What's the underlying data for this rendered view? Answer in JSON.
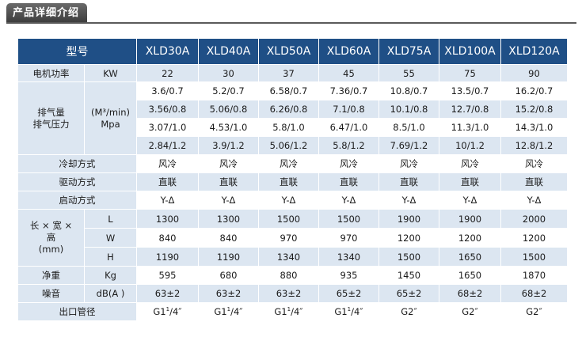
{
  "header": {
    "title": "产品详细介绍"
  },
  "table": {
    "model_header": "型号",
    "models": [
      "XLD30A",
      "XLD40A",
      "XLD50A",
      "XLD60A",
      "XLD75A",
      "XLD100A",
      "XLD120A"
    ],
    "power": {
      "label": "电机功率",
      "unit": "KW",
      "values": [
        "22",
        "30",
        "37",
        "45",
        "55",
        "75",
        "90"
      ]
    },
    "air": {
      "label_line1": "排气量",
      "label_line2": "排气压力",
      "unit_line1": "(M³/min)",
      "unit_line2": "Mpa",
      "rows": [
        [
          "3.6/0.7",
          "5.2/0.7",
          "6.58/0.7",
          "7.36/0.7",
          "10.8/0.7",
          "13.5/0.7",
          "16.2/0.7"
        ],
        [
          "3.56/0.8",
          "5.06/0.8",
          "6.26/0.8",
          "7.1/0.8",
          "10.1/0.8",
          "12.7/0.8",
          "15.2/0.8"
        ],
        [
          "3.07/1.0",
          "4.53/1.0",
          "5.8/1.0",
          "6.47/1.0",
          "8.5/1.0",
          "11.3/1.0",
          "14.3/1.0"
        ],
        [
          "2.84/1.2",
          "3.9/1.2",
          "5.06/1.2",
          "5.8/1.2",
          "7.69/1.2",
          "10/1.2",
          "12.8/1.2"
        ]
      ]
    },
    "cooling": {
      "label": "冷却方式",
      "values": [
        "风冷",
        "风冷",
        "风冷",
        "风冷",
        "风冷",
        "风冷",
        "风冷"
      ]
    },
    "drive": {
      "label": "驱动方式",
      "values": [
        "直联",
        "直联",
        "直联",
        "直联",
        "直联",
        "直联",
        "直联"
      ]
    },
    "start": {
      "label": "启动方式",
      "values": [
        "Y-Δ",
        "Y-Δ",
        "Y-Δ",
        "Y-Δ",
        "Y-Δ",
        "Y-Δ",
        "Y-Δ"
      ]
    },
    "dims": {
      "label_line1": "长 × 宽 ×",
      "label_line2": "高",
      "label_line3": "(mm)",
      "rows": [
        {
          "unit": "L",
          "values": [
            "1300",
            "1300",
            "1500",
            "1500",
            "1900",
            "1900",
            "2000"
          ]
        },
        {
          "unit": "W",
          "values": [
            "840",
            "840",
            "970",
            "970",
            "1200",
            "1200",
            "1200"
          ]
        },
        {
          "unit": "H",
          "values": [
            "1190",
            "1190",
            "1340",
            "1340",
            "1500",
            "1650",
            "1500"
          ]
        }
      ]
    },
    "weight": {
      "label": "净重",
      "unit": "Kg",
      "values": [
        "595",
        "680",
        "880",
        "935",
        "1450",
        "1650",
        "1870"
      ]
    },
    "noise": {
      "label": "噪音",
      "unit": "dB(A )",
      "values": [
        "63±2",
        "63±2",
        "63±2",
        "65±2",
        "65±2",
        "68±2",
        "68±2"
      ]
    },
    "outlet": {
      "label": "出口管径",
      "values": [
        {
          "base": "G1",
          "sup": "1",
          "tail": "/4″"
        },
        {
          "base": "G1",
          "sup": "1",
          "tail": "/4″"
        },
        {
          "base": "G1",
          "sup": "1",
          "tail": "/4″"
        },
        {
          "base": "G1",
          "sup": "1",
          "tail": "/4″"
        },
        {
          "base": "G2″",
          "sup": "",
          "tail": ""
        },
        {
          "base": "G2″",
          "sup": "",
          "tail": ""
        },
        {
          "base": "G2″",
          "sup": "",
          "tail": ""
        }
      ]
    }
  }
}
